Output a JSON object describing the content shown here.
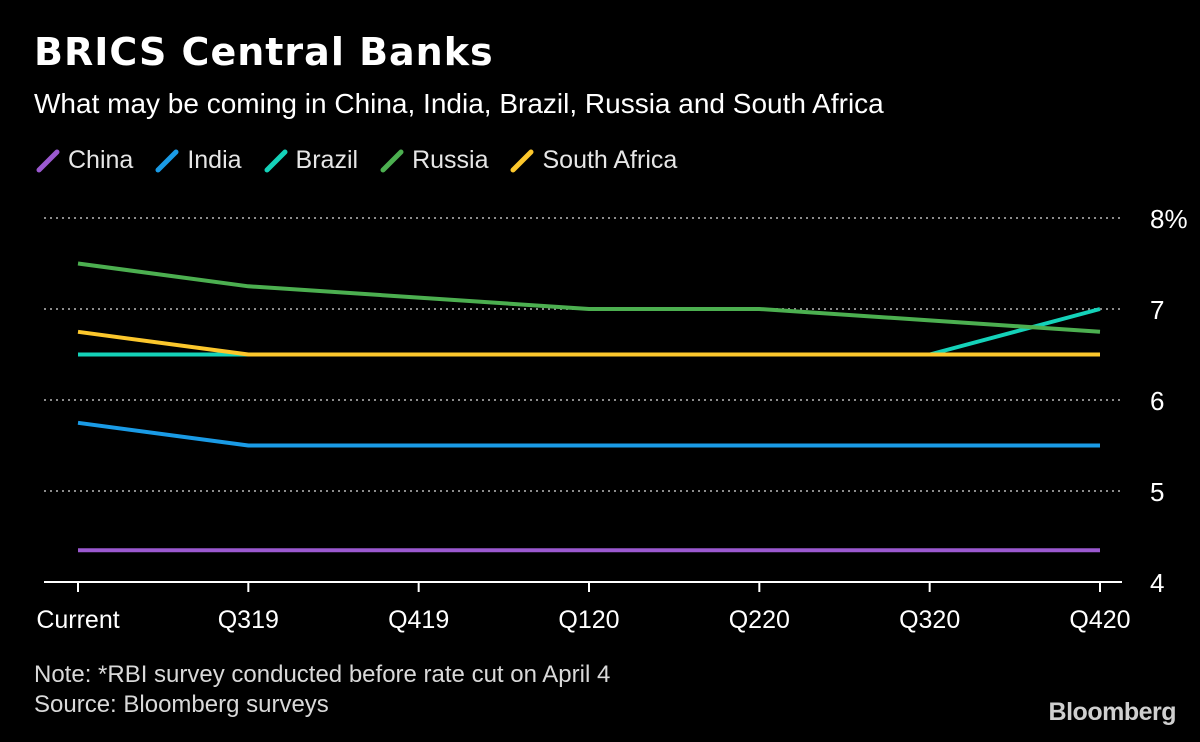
{
  "header": {
    "title": "BRICS Central Banks",
    "subtitle": "What may be coming in China, India, Brazil, Russia and South Africa"
  },
  "legend": [
    {
      "label": "China",
      "color": "#9b59d0"
    },
    {
      "label": "India",
      "color": "#1a9be6"
    },
    {
      "label": "Brazil",
      "color": "#14d2b9"
    },
    {
      "label": "Russia",
      "color": "#4caf50"
    },
    {
      "label": "South Africa",
      "color": "#fcc72c"
    }
  ],
  "chart_data": {
    "type": "line",
    "title": "BRICS Central Banks",
    "subtitle": "What may be coming in China, India, Brazil, Russia and South Africa",
    "categories": [
      "Current",
      "Q319",
      "Q419",
      "Q120",
      "Q220",
      "Q320",
      "Q420"
    ],
    "ylim": [
      4,
      8
    ],
    "y_ticks": [
      4,
      5,
      6,
      7,
      8
    ],
    "y_tick_labels": [
      "4",
      "5",
      "6",
      "7",
      "8%"
    ],
    "y_axis_side": "right",
    "grid": "dotted horizontal",
    "legend_position": "top-left",
    "series": [
      {
        "name": "China",
        "color": "#9b59d0",
        "values": [
          4.35,
          4.35,
          4.35,
          4.35,
          4.35,
          4.35,
          4.35
        ]
      },
      {
        "name": "India",
        "color": "#1a9be6",
        "values": [
          5.75,
          5.5,
          5.5,
          5.5,
          5.5,
          5.5,
          5.5
        ]
      },
      {
        "name": "Brazil",
        "color": "#14d2b9",
        "values": [
          6.5,
          6.5,
          6.5,
          6.5,
          6.5,
          6.5,
          7.0
        ]
      },
      {
        "name": "Russia",
        "color": "#4caf50",
        "values": [
          7.5,
          7.25,
          7.125,
          7.0,
          7.0,
          6.875,
          6.75
        ]
      },
      {
        "name": "South Africa",
        "color": "#fcc72c",
        "values": [
          6.75,
          6.5,
          6.5,
          6.5,
          6.5,
          6.5,
          6.5
        ]
      }
    ]
  },
  "footer": {
    "note": "Note: *RBI survey conducted before rate cut on April 4",
    "source": "Source: Bloomberg surveys",
    "brand": "Bloomberg"
  }
}
